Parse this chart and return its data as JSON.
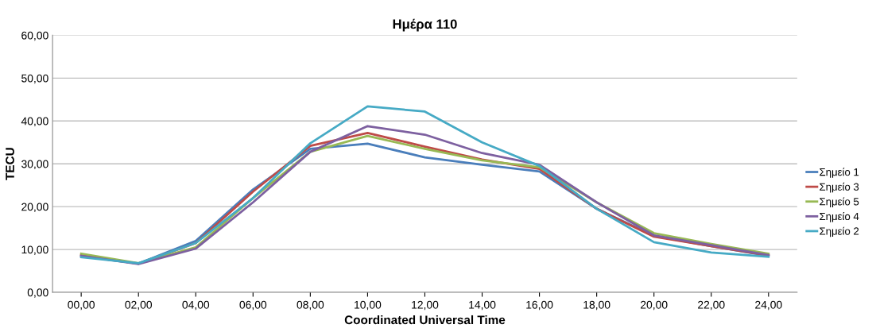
{
  "chart_data": {
    "type": "line",
    "title": "Ημέρα 110",
    "xlabel": "Coordinated Universal Time",
    "ylabel": "TECU",
    "categories": [
      "00,00",
      "02,00",
      "04,00",
      "06,00",
      "08,00",
      "10,00",
      "12,00",
      "14,00",
      "16,00",
      "18,00",
      "20,00",
      "22,00",
      "24,00"
    ],
    "series": [
      {
        "name": "Σημείο 1",
        "color": "#4a7ebb",
        "values": [
          8.5,
          6.7,
          12.0,
          24.0,
          33.5,
          34.7,
          31.5,
          29.8,
          28.2,
          19.5,
          13.2,
          10.8,
          8.5
        ]
      },
      {
        "name": "Σημείο 3",
        "color": "#be4b48",
        "values": [
          8.7,
          6.7,
          11.5,
          23.5,
          34.2,
          37.2,
          34.0,
          31.0,
          28.8,
          19.5,
          13.0,
          10.8,
          8.6
        ]
      },
      {
        "name": "Σημείο 5",
        "color": "#98b954",
        "values": [
          9.0,
          6.8,
          10.5,
          22.0,
          32.8,
          36.5,
          33.5,
          30.8,
          29.2,
          21.0,
          13.8,
          11.3,
          9.0
        ]
      },
      {
        "name": "Σημείο 4",
        "color": "#7d60a0",
        "values": [
          8.5,
          6.6,
          10.2,
          21.0,
          32.8,
          38.8,
          36.8,
          32.5,
          29.8,
          21.0,
          13.3,
          11.0,
          8.7
        ]
      },
      {
        "name": "Σημείο 2",
        "color": "#46aac5",
        "values": [
          8.2,
          6.8,
          11.5,
          22.0,
          34.8,
          43.4,
          42.2,
          35.0,
          29.5,
          19.5,
          11.7,
          9.3,
          8.3
        ]
      }
    ],
    "ylim": [
      0,
      60
    ],
    "yticks": [
      {
        "value": 0,
        "label": "0,00"
      },
      {
        "value": 10,
        "label": "10,00"
      },
      {
        "value": 20,
        "label": "20,00"
      },
      {
        "value": 30,
        "label": "30,00"
      },
      {
        "value": 40,
        "label": "40,00"
      },
      {
        "value": 50,
        "label": "50,00"
      },
      {
        "value": 60,
        "label": "60,00"
      }
    ],
    "grid": "y",
    "legend": "right"
  }
}
